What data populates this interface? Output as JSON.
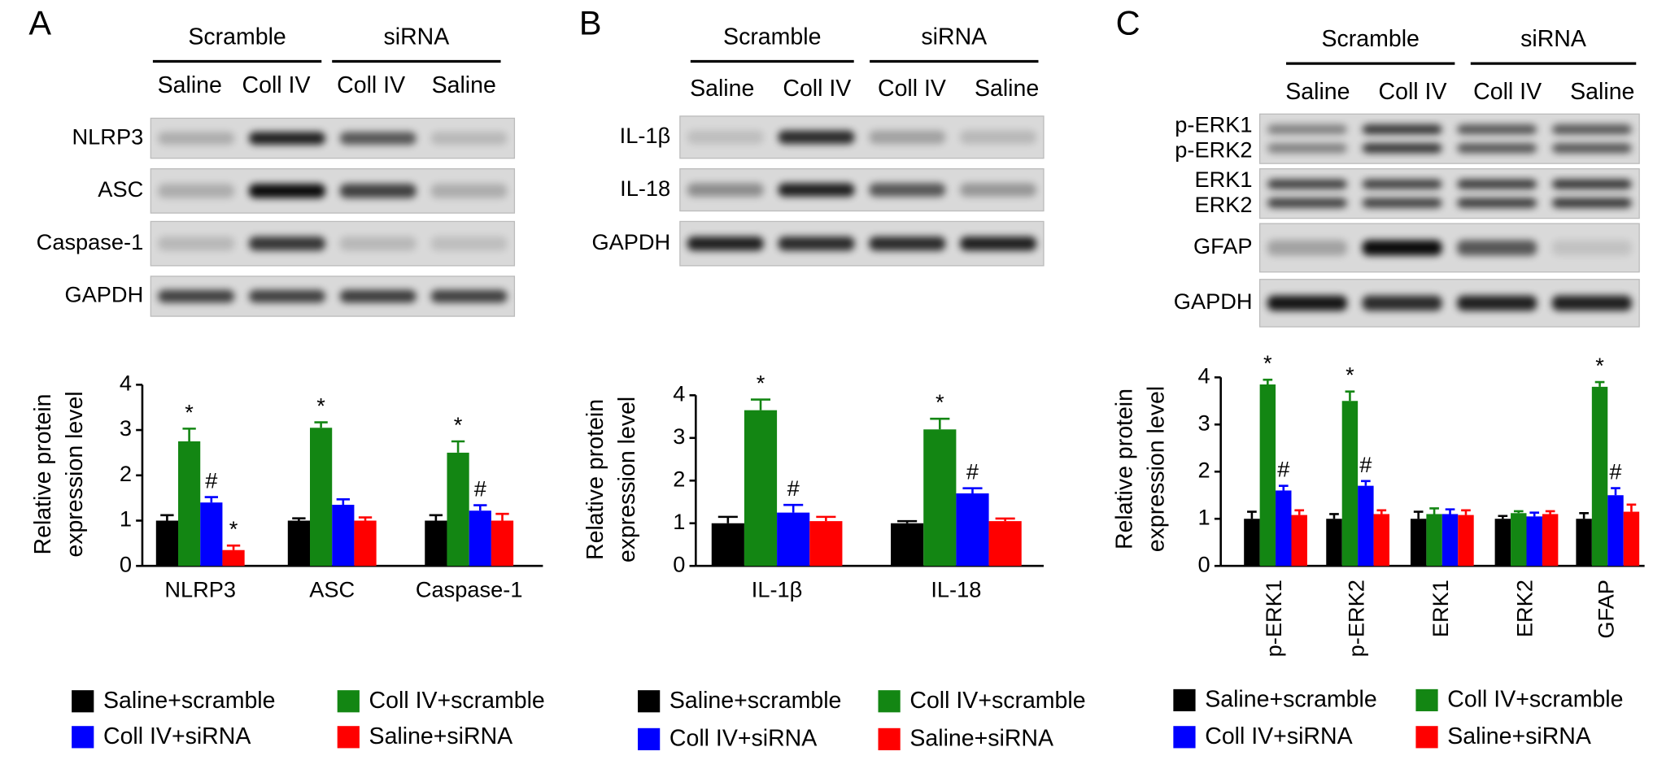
{
  "panels": [
    {
      "letter": "A",
      "blot": {
        "groups": [
          "Scramble",
          "siRNA"
        ],
        "lanes": [
          "Saline",
          "Coll IV",
          "Coll IV",
          "Saline"
        ],
        "rows": [
          [
            "NLRP3"
          ],
          [
            "ASC"
          ],
          [
            "Caspase-1"
          ],
          [
            "GAPDH"
          ]
        ]
      }
    },
    {
      "letter": "B",
      "blot": {
        "groups": [
          "Scramble",
          "siRNA"
        ],
        "lanes": [
          "Saline",
          "Coll IV",
          "Coll IV",
          "Saline"
        ],
        "rows": [
          [
            "IL-1β"
          ],
          [
            "IL-18"
          ],
          [
            "GAPDH"
          ]
        ]
      }
    },
    {
      "letter": "C",
      "blot": {
        "groups": [
          "Scramble",
          "siRNA"
        ],
        "lanes": [
          "Saline",
          "Coll IV",
          "Coll IV",
          "Saline"
        ],
        "rows": [
          [
            "p-ERK1",
            "p-ERK2"
          ],
          [
            "ERK1",
            "ERK2"
          ],
          [
            "GFAP"
          ],
          [
            "GAPDH"
          ]
        ]
      }
    }
  ],
  "chart_data": [
    {
      "type": "bar",
      "ylabel": [
        "Relative protein",
        "expression level"
      ],
      "categories": [
        "NLRP3",
        "ASC",
        "Caspase-1"
      ],
      "ylim": [
        0,
        4
      ],
      "yticks": [
        0,
        1,
        2,
        3,
        4
      ],
      "series": [
        {
          "name": "Saline+scramble",
          "color": "#000000",
          "values": [
            1,
            1,
            1
          ],
          "errors": [
            0.12,
            0.05,
            0.12
          ],
          "annotations": [
            null,
            null,
            null
          ]
        },
        {
          "name": "Coll IV+scramble",
          "color": "#138613",
          "values": [
            2.75,
            3.05,
            2.5
          ],
          "errors": [
            0.28,
            0.12,
            0.25
          ],
          "annotations": [
            "*",
            "*",
            "*"
          ]
        },
        {
          "name": "Coll IV+siRNA",
          "color": "#0000ff",
          "values": [
            1.4,
            1.35,
            1.22
          ],
          "errors": [
            0.12,
            0.12,
            0.12
          ],
          "annotations": [
            "#",
            null,
            "#"
          ]
        },
        {
          "name": "Saline+siRNA",
          "color": "#ff0000",
          "values": [
            0.35,
            1,
            1
          ],
          "errors": [
            0.1,
            0.07,
            0.15
          ],
          "annotations": [
            "*",
            null,
            null
          ]
        }
      ]
    },
    {
      "type": "bar",
      "ylabel": [
        "Relative protein",
        "expression level"
      ],
      "categories": [
        "IL-1β",
        "IL-18"
      ],
      "ylim": [
        0,
        4
      ],
      "yticks": [
        0,
        1,
        2,
        3,
        4
      ],
      "series": [
        {
          "name": "Saline+scramble",
          "color": "#000000",
          "values": [
            1,
            1
          ],
          "errors": [
            0.15,
            0.05
          ],
          "annotations": [
            null,
            null
          ]
        },
        {
          "name": "Coll IV+scramble",
          "color": "#138613",
          "values": [
            3.65,
            3.2
          ],
          "errors": [
            0.25,
            0.25
          ],
          "annotations": [
            "*",
            "*"
          ]
        },
        {
          "name": "Coll IV+siRNA",
          "color": "#0000ff",
          "values": [
            1.25,
            1.7
          ],
          "errors": [
            0.18,
            0.12
          ],
          "annotations": [
            "#",
            "#"
          ]
        },
        {
          "name": "Saline+siRNA",
          "color": "#ff0000",
          "values": [
            1.05,
            1.05
          ],
          "errors": [
            0.1,
            0.06
          ],
          "annotations": [
            null,
            null
          ]
        }
      ]
    },
    {
      "type": "bar",
      "ylabel": [
        "Relative protein",
        "expression level"
      ],
      "categories": [
        "p-ERK1",
        "p-ERK2",
        "ERK1",
        "ERK2",
        "GFAP"
      ],
      "ylim": [
        0,
        4
      ],
      "yticks": [
        0,
        1,
        2,
        3,
        4
      ],
      "series": [
        {
          "name": "Saline+scramble",
          "color": "#000000",
          "values": [
            1,
            1,
            1,
            1,
            1
          ],
          "errors": [
            0.15,
            0.1,
            0.15,
            0.06,
            0.12
          ],
          "annotations": [
            null,
            null,
            null,
            null,
            null
          ]
        },
        {
          "name": "Coll IV+scramble",
          "color": "#138613",
          "values": [
            3.85,
            3.5,
            1.1,
            1.12,
            3.8
          ],
          "errors": [
            0.1,
            0.2,
            0.12,
            0.04,
            0.1
          ],
          "annotations": [
            "*",
            "*",
            null,
            null,
            "*"
          ]
        },
        {
          "name": "Coll IV+siRNA",
          "color": "#0000ff",
          "values": [
            1.6,
            1.7,
            1.1,
            1.05,
            1.5
          ],
          "errors": [
            0.1,
            0.1,
            0.1,
            0.08,
            0.15
          ],
          "annotations": [
            "#",
            "#",
            null,
            null,
            "#"
          ]
        },
        {
          "name": "Saline+siRNA",
          "color": "#ff0000",
          "values": [
            1.08,
            1.1,
            1.08,
            1.1,
            1.15
          ],
          "errors": [
            0.1,
            0.08,
            0.1,
            0.06,
            0.15
          ],
          "annotations": [
            null,
            null,
            null,
            null,
            null
          ]
        }
      ]
    }
  ]
}
